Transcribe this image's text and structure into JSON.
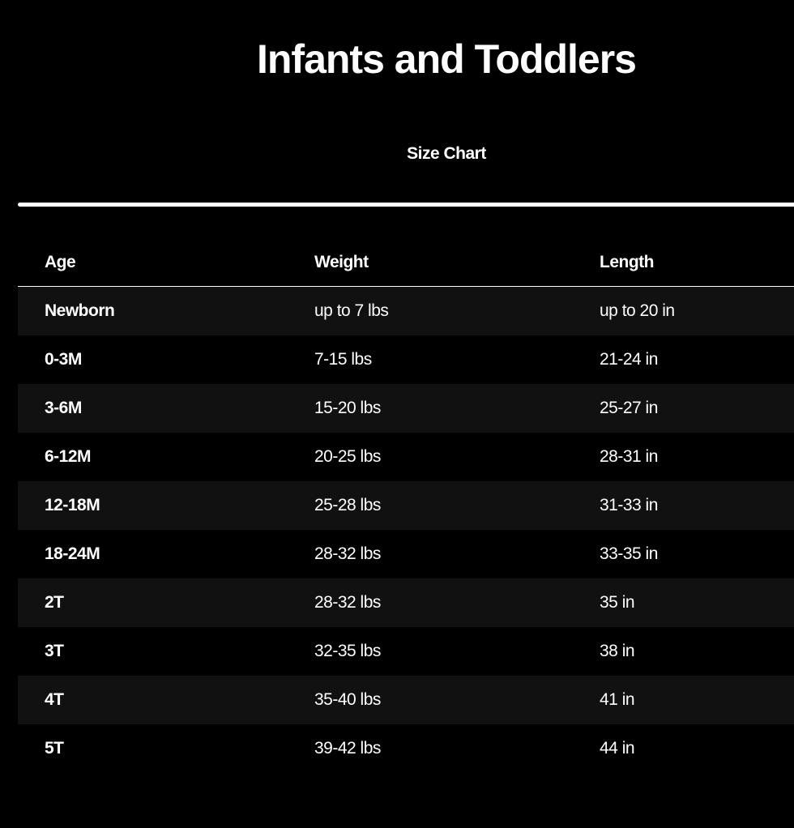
{
  "title": "Infants and Toddlers",
  "tab": {
    "label": "Size Chart",
    "active": true
  },
  "table": {
    "headers": [
      "Age",
      "Weight",
      "Length"
    ],
    "rows": [
      [
        "Newborn",
        "up to 7 lbs",
        "up to 20 in"
      ],
      [
        "0-3M",
        "7-15 lbs",
        "21-24 in"
      ],
      [
        "3-6M",
        "15-20 lbs",
        "25-27 in"
      ],
      [
        "6-12M",
        "20-25 lbs",
        "28-31 in"
      ],
      [
        "12-18M",
        "25-28 lbs",
        "31-33 in"
      ],
      [
        "18-24M",
        "28-32 lbs",
        "33-35 in"
      ],
      [
        "2T",
        "28-32 lbs",
        "35 in"
      ],
      [
        "3T",
        "32-35 lbs",
        "38 in"
      ],
      [
        "4T",
        "35-40 lbs",
        "41 in"
      ],
      [
        "5T",
        "39-42 lbs",
        "44 in"
      ]
    ]
  }
}
